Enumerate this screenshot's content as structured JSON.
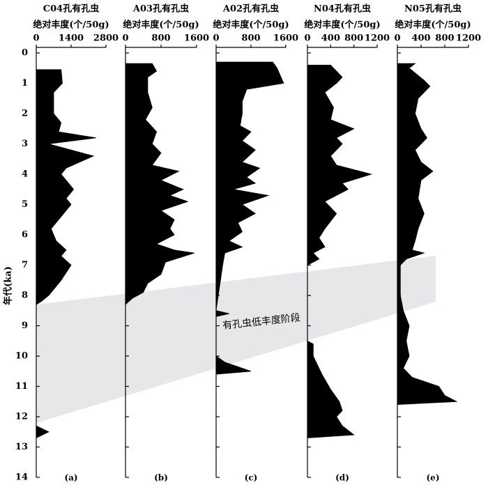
{
  "age_axis": {
    "label": "年代(ka)",
    "ylim": [
      0,
      14
    ],
    "yticks": [
      0,
      1,
      2,
      3,
      4,
      5,
      6,
      7,
      8,
      9,
      10,
      11,
      12,
      13,
      14
    ]
  },
  "annotation": "有孔虫低丰度阶段",
  "chart_data": [
    {
      "type": "area",
      "title": "C04孔有孔虫",
      "xlabel": "绝对丰度(个/50g)",
      "panel": "(a)",
      "color": "#000000",
      "xlim": [
        0,
        2800
      ],
      "xticks": [
        0,
        1400,
        2800
      ],
      "y": [
        0.55,
        0.55,
        1.0,
        1.3,
        2.0,
        2.3,
        2.6,
        2.8,
        3.0,
        3.4,
        3.8,
        4.0,
        4.5,
        4.8,
        5.0,
        5.5,
        5.8,
        6.2,
        6.5,
        6.7,
        7.0,
        7.5,
        8.0,
        8.2,
        8.3,
        12.3,
        12.5,
        12.7
      ],
      "values": [
        0,
        1000,
        1050,
        700,
        700,
        1000,
        900,
        2400,
        500,
        2300,
        1200,
        1000,
        1500,
        1200,
        1400,
        900,
        600,
        800,
        1200,
        1000,
        1400,
        1000,
        500,
        200,
        0,
        0,
        500,
        0
      ]
    },
    {
      "type": "area",
      "title": "A03孔有孔虫",
      "xlabel": "绝对丰度(个/50g)",
      "panel": "(b)",
      "color": "#000000",
      "xlim": [
        0,
        1600
      ],
      "xticks": [
        0,
        800,
        1600
      ],
      "y": [
        0.35,
        0.35,
        0.6,
        0.8,
        1.3,
        1.8,
        2.2,
        2.6,
        3.0,
        3.3,
        3.7,
        3.9,
        4.2,
        4.5,
        4.7,
        4.9,
        5.2,
        5.5,
        5.8,
        6.0,
        6.3,
        6.5,
        6.6,
        6.9,
        7.3,
        7.6,
        7.9,
        8.1,
        8.3
      ],
      "values": [
        0,
        600,
        700,
        500,
        500,
        600,
        450,
        700,
        600,
        800,
        600,
        1200,
        800,
        1300,
        1000,
        1400,
        800,
        1100,
        1000,
        1100,
        700,
        1100,
        1550,
        900,
        800,
        500,
        400,
        150,
        0
      ]
    },
    {
      "type": "area",
      "title": "A02孔有孔虫",
      "xlabel": "绝对丰度(个/50g)",
      "panel": "(c)",
      "color": "#000000",
      "xlim": [
        0,
        1600
      ],
      "xticks": [
        0,
        800,
        1600
      ],
      "y": [
        0.3,
        0.3,
        0.5,
        1.0,
        1.2,
        1.6,
        2.0,
        2.4,
        2.6,
        2.9,
        3.2,
        3.6,
        3.8,
        4.1,
        4.3,
        4.5,
        4.7,
        5.0,
        5.3,
        5.6,
        5.9,
        6.2,
        6.4,
        6.6,
        7.0,
        7.5,
        8.0,
        8.5,
        8.6,
        8.7,
        10.0,
        10.2,
        10.5,
        10.6
      ],
      "values": [
        0,
        1300,
        1400,
        1550,
        700,
        600,
        600,
        550,
        800,
        600,
        900,
        600,
        1000,
        700,
        900,
        400,
        1200,
        600,
        900,
        500,
        600,
        300,
        600,
        200,
        150,
        100,
        50,
        0,
        300,
        0,
        0,
        200,
        800,
        0
      ]
    },
    {
      "type": "area",
      "title": "N04孔有孔虫",
      "xlabel": "绝对丰度(个/50g)",
      "panel": "(d)",
      "color": "#000000",
      "xlim": [
        0,
        1200
      ],
      "xticks": [
        0,
        400,
        800,
        1200
      ],
      "y": [
        0.4,
        0.4,
        0.8,
        1.0,
        1.3,
        1.8,
        2.2,
        2.5,
        2.8,
        3.0,
        3.4,
        3.7,
        4.0,
        4.3,
        4.5,
        4.9,
        5.3,
        5.8,
        6.1,
        6.4,
        6.6,
        6.8,
        7.0,
        9.5,
        9.6,
        10.0,
        10.6,
        11.1,
        11.5,
        11.8,
        12.0,
        12.3,
        12.6,
        12.7
      ],
      "values": [
        0,
        400,
        600,
        500,
        300,
        450,
        400,
        800,
        500,
        600,
        400,
        500,
        1100,
        600,
        700,
        300,
        500,
        300,
        200,
        300,
        100,
        200,
        0,
        0,
        100,
        100,
        250,
        400,
        550,
        600,
        500,
        600,
        800,
        0
      ]
    },
    {
      "type": "area",
      "title": "N05孔有孔虫",
      "xlabel": "绝对丰度(个/50g)",
      "panel": "(e)",
      "color": "#000000",
      "xlim": [
        0,
        1200
      ],
      "xticks": [
        0,
        400,
        800,
        1200
      ],
      "y": [
        0.35,
        0.35,
        0.5,
        0.9,
        1.1,
        1.5,
        2.0,
        2.5,
        2.8,
        3.2,
        3.6,
        3.9,
        4.2,
        4.8,
        5.3,
        5.8,
        6.2,
        6.5,
        6.6,
        6.8,
        7.0,
        8.0,
        8.5,
        9.0,
        9.5,
        10.0,
        10.4,
        10.7,
        11.0,
        11.3,
        11.5,
        11.6
      ],
      "values": [
        0,
        300,
        200,
        450,
        550,
        350,
        300,
        400,
        500,
        300,
        400,
        600,
        400,
        350,
        450,
        350,
        300,
        250,
        450,
        150,
        50,
        50,
        100,
        200,
        150,
        200,
        100,
        250,
        700,
        800,
        1000,
        0
      ]
    }
  ]
}
